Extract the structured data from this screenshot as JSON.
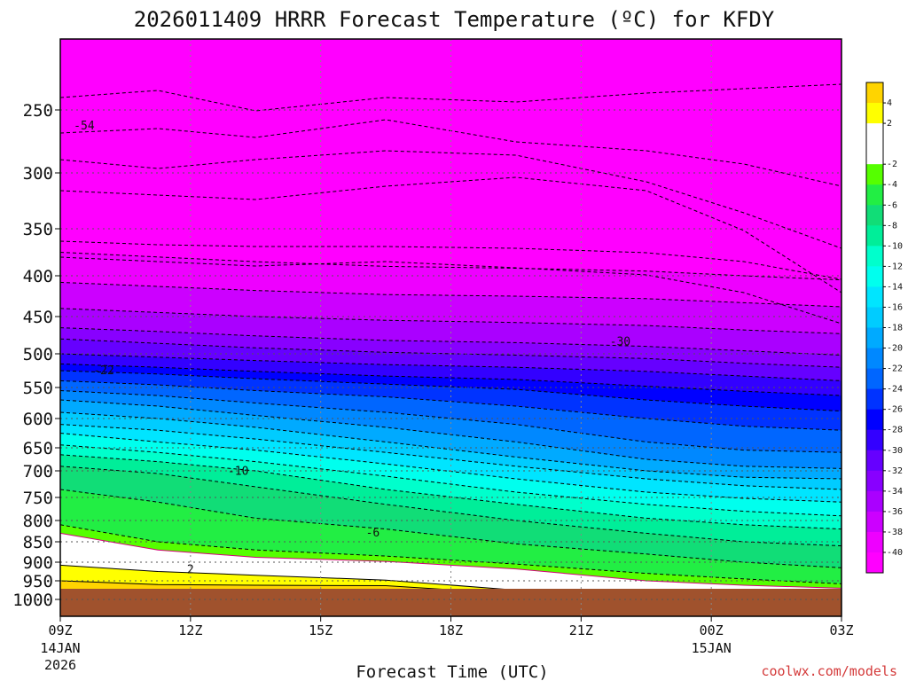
{
  "chart_data": {
    "type": "heatmap",
    "title": "2026011409 HRRR Forecast Temperature (ºC) for KFDY",
    "xlabel": "Forecast Time (UTC)",
    "ylabel": "",
    "y_ticks": [
      250,
      300,
      350,
      400,
      450,
      500,
      550,
      600,
      650,
      700,
      750,
      800,
      850,
      900,
      950,
      1000
    ],
    "ylim": [
      200,
      1035
    ],
    "x_ticks": [
      {
        "label": "09Z",
        "sub1": "14JAN",
        "sub2": "2026"
      },
      {
        "label": "12Z",
        "sub1": "",
        "sub2": ""
      },
      {
        "label": "15Z",
        "sub1": "",
        "sub2": ""
      },
      {
        "label": "18Z",
        "sub1": "",
        "sub2": ""
      },
      {
        "label": "21Z",
        "sub1": "",
        "sub2": ""
      },
      {
        "label": "00Z",
        "sub1": "15JAN",
        "sub2": ""
      },
      {
        "label": "03Z",
        "sub1": "",
        "sub2": ""
      }
    ],
    "grid": true,
    "colorbar": {
      "placement": "right",
      "labels": [
        "4",
        "2",
        "-2",
        "-4",
        "-6",
        "-8",
        "-10",
        "-12",
        "-14",
        "-16",
        "-18",
        "-20",
        "-22",
        "-24",
        "-26",
        "-28",
        "-30",
        "-32",
        "-34",
        "-36",
        "-38",
        "-40"
      ],
      "colors": [
        "#ffd400",
        "#ffff00",
        "#ffffff",
        "#ffffff",
        "#55ff00",
        "#22ee44",
        "#11dd77",
        "#00ee99",
        "#00ffcc",
        "#00ffee",
        "#00e5ff",
        "#00ccff",
        "#00aaff",
        "#0088ff",
        "#0066ff",
        "#0033ff",
        "#0000ff",
        "#3300ff",
        "#6600ff",
        "#8800ff",
        "#aa00ff",
        "#cc00ff",
        "#ee00ff",
        "#ff00ff"
      ]
    },
    "contour_labels": [
      {
        "text": "-54",
        "x": 0.55,
        "p": 262
      },
      {
        "text": "-30",
        "x": 12.9,
        "p": 483
      },
      {
        "text": "-22",
        "x": 1.0,
        "p": 524
      },
      {
        "text": "-10",
        "x": 4.1,
        "p": 699
      },
      {
        "text": "-6",
        "x": 7.2,
        "p": 827
      },
      {
        "text": "2",
        "x": 3.0,
        "p": 918
      }
    ],
    "isotherms": [
      {
        "t": -40,
        "p": [
          375,
          380,
          385,
          390,
          392,
          395,
          400,
          405
        ]
      },
      {
        "t": -38,
        "p": [
          408,
          413,
          418,
          423,
          425,
          428,
          433,
          438
        ]
      },
      {
        "t": -36,
        "p": [
          440,
          445,
          450,
          455,
          458,
          462,
          468,
          473
        ]
      },
      {
        "t": -34,
        "p": [
          465,
          470,
          476,
          482,
          485,
          490,
          496,
          502
        ]
      },
      {
        "t": -32,
        "p": [
          480,
          486,
          492,
          498,
          502,
          507,
          514,
          520
        ]
      },
      {
        "t": -30,
        "p": [
          500,
          505,
          510,
          516,
          520,
          526,
          533,
          540
        ]
      },
      {
        "t": -28,
        "p": [
          515,
          520,
          526,
          533,
          538,
          548,
          556,
          563
        ]
      },
      {
        "t": -26,
        "p": [
          525,
          530,
          537,
          545,
          553,
          570,
          580,
          588
        ]
      },
      {
        "t": -24,
        "p": [
          540,
          546,
          555,
          565,
          580,
          600,
          613,
          620
        ]
      },
      {
        "t": -22,
        "p": [
          555,
          563,
          575,
          590,
          610,
          640,
          655,
          660
        ]
      },
      {
        "t": -20,
        "p": [
          570,
          580,
          595,
          615,
          640,
          675,
          690,
          695
        ]
      },
      {
        "t": -18,
        "p": [
          590,
          600,
          615,
          640,
          670,
          700,
          712,
          715
        ]
      },
      {
        "t": -16,
        "p": [
          610,
          620,
          635,
          660,
          690,
          715,
          728,
          735
        ]
      },
      {
        "t": -14,
        "p": [
          625,
          640,
          655,
          685,
          715,
          740,
          752,
          760
        ]
      },
      {
        "t": -12,
        "p": [
          645,
          660,
          680,
          710,
          740,
          765,
          780,
          790
        ]
      },
      {
        "t": -10,
        "p": [
          665,
          680,
          700,
          735,
          765,
          795,
          810,
          820
        ]
      },
      {
        "t": -8,
        "p": [
          690,
          705,
          730,
          765,
          800,
          830,
          850,
          860
        ]
      },
      {
        "t": -6,
        "p": [
          735,
          760,
          795,
          820,
          855,
          880,
          900,
          915
        ]
      },
      {
        "t": -4,
        "p": [
          810,
          850,
          870,
          885,
          905,
          930,
          945,
          958
        ]
      },
      {
        "t": -2,
        "p": [
          830,
          870,
          888,
          898,
          918,
          950,
          962,
          970
        ]
      },
      {
        "t": 2,
        "p": [
          908,
          925,
          935,
          948,
          975,
          990,
          995,
          998
        ]
      },
      {
        "t": 4,
        "p": [
          950,
          960,
          962,
          963,
          985,
          998,
          1000,
          1000
        ]
      }
    ],
    "isotherm_x": [
      0,
      1.5,
      3,
      5,
      7,
      9,
      10.5,
      12
    ]
  },
  "credit": "coolwx.com/models"
}
